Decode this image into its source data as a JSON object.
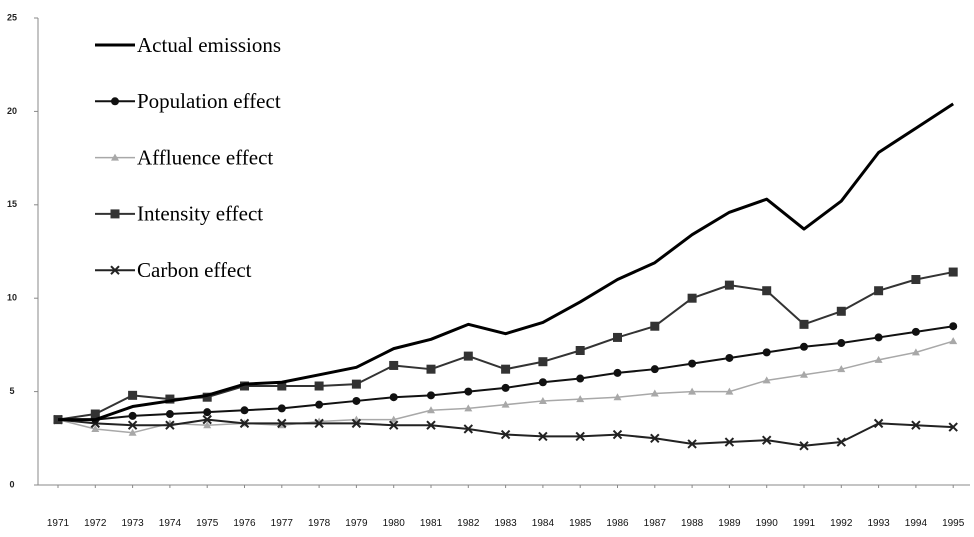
{
  "chart_data": {
    "type": "line",
    "categories": [
      "1971",
      "1972",
      "1973",
      "1974",
      "1975",
      "1976",
      "1977",
      "1978",
      "1979",
      "1980",
      "1981",
      "1982",
      "1983",
      "1984",
      "1985",
      "1986",
      "1987",
      "1988",
      "1989",
      "1990",
      "1991",
      "1992",
      "1993",
      "1994",
      "1995"
    ],
    "ylim": [
      0,
      25
    ],
    "yticks": [
      0,
      5,
      10,
      15,
      20,
      25
    ],
    "series": [
      {
        "name": "Actual emissions",
        "color": "#000000",
        "marker": "none",
        "width": 3,
        "values": [
          3.5,
          3.5,
          4.2,
          4.5,
          4.8,
          5.4,
          5.5,
          5.9,
          6.3,
          7.3,
          7.8,
          8.6,
          8.1,
          8.7,
          9.8,
          11.0,
          11.9,
          13.4,
          14.6,
          15.3,
          13.7,
          15.2,
          17.8,
          19.1,
          20.4
        ]
      },
      {
        "name": "Population effect",
        "color": "#111111",
        "marker": "circle",
        "width": 2,
        "values": [
          3.5,
          3.5,
          3.7,
          3.8,
          3.9,
          4.0,
          4.1,
          4.3,
          4.5,
          4.7,
          4.8,
          5.0,
          5.2,
          5.5,
          5.7,
          6.0,
          6.2,
          6.5,
          6.8,
          7.1,
          7.4,
          7.6,
          7.9,
          8.2,
          8.5
        ]
      },
      {
        "name": "Affluence effect",
        "color": "#a8a8a8",
        "marker": "triangle",
        "width": 1.5,
        "values": [
          3.5,
          3.0,
          2.8,
          3.3,
          3.2,
          3.3,
          3.2,
          3.4,
          3.5,
          3.5,
          4.0,
          4.1,
          4.3,
          4.5,
          4.6,
          4.7,
          4.9,
          5.0,
          5.0,
          5.6,
          5.9,
          6.2,
          6.7,
          7.1,
          7.7
        ]
      },
      {
        "name": "Intensity effect",
        "color": "#333333",
        "marker": "square",
        "width": 2,
        "values": [
          3.5,
          3.8,
          4.8,
          4.6,
          4.7,
          5.3,
          5.3,
          5.3,
          5.4,
          6.4,
          6.2,
          6.9,
          6.2,
          6.6,
          7.2,
          7.9,
          8.5,
          10.0,
          10.7,
          10.4,
          8.6,
          9.3,
          10.4,
          11.0,
          11.4
        ]
      },
      {
        "name": "Carbon effect",
        "color": "#222222",
        "marker": "x",
        "width": 2,
        "values": [
          3.5,
          3.3,
          3.2,
          3.2,
          3.5,
          3.3,
          3.3,
          3.3,
          3.3,
          3.2,
          3.2,
          3.0,
          2.7,
          2.6,
          2.6,
          2.7,
          2.5,
          2.2,
          2.3,
          2.4,
          2.1,
          2.3,
          3.3,
          3.2,
          3.1
        ]
      }
    ]
  }
}
